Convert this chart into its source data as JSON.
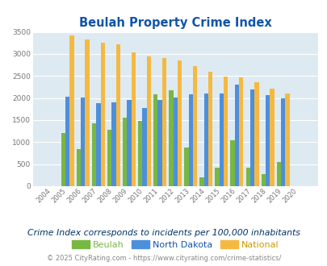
{
  "title": "Beulah Property Crime Index",
  "years": [
    "2004",
    "2005",
    "2006",
    "2007",
    "2008",
    "2009",
    "2010",
    "2011",
    "2012",
    "2013",
    "2014",
    "2015",
    "2016",
    "2017",
    "2018",
    "2019",
    "2020"
  ],
  "beulah": [
    0,
    1200,
    850,
    1430,
    1280,
    1550,
    1490,
    2080,
    2170,
    880,
    200,
    420,
    1040,
    420,
    270,
    550,
    0
  ],
  "north_dakota": [
    0,
    2030,
    2010,
    1890,
    1900,
    1950,
    1770,
    1950,
    2010,
    2090,
    2110,
    2110,
    2310,
    2200,
    2060,
    2000,
    0
  ],
  "national": [
    0,
    3420,
    3330,
    3260,
    3210,
    3040,
    2950,
    2910,
    2860,
    2720,
    2590,
    2490,
    2460,
    2360,
    2210,
    2100,
    0
  ],
  "beulah_color": "#77b843",
  "nd_color": "#4d8fdb",
  "national_color": "#f5b942",
  "bg_color": "#ddeaf2",
  "title_color": "#1155aa",
  "ylim": [
    0,
    3500
  ],
  "yticks": [
    0,
    500,
    1000,
    1500,
    2000,
    2500,
    3000,
    3500
  ],
  "subtitle": "Crime Index corresponds to incidents per 100,000 inhabitants",
  "footer": "© 2025 CityRating.com - https://www.cityrating.com/crime-statistics/",
  "legend_labels": [
    "Beulah",
    "North Dakota",
    "National"
  ],
  "legend_text_colors": [
    "#77b843",
    "#1155aa",
    "#cc9900"
  ],
  "subtitle_color": "#003366",
  "footer_color": "#888888",
  "footer_link_color": "#4488cc"
}
